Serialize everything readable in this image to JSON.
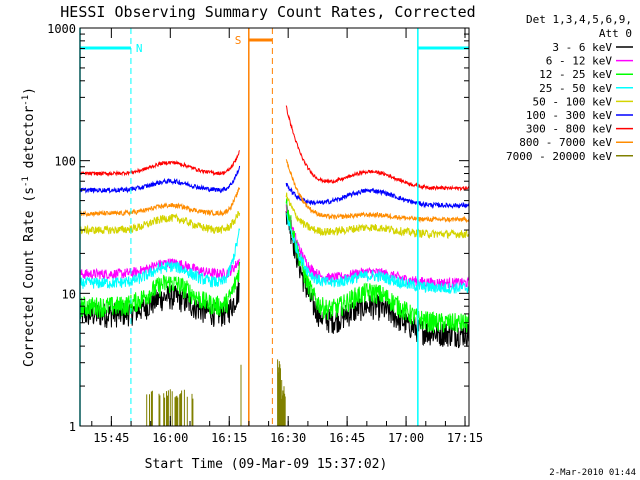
{
  "chart_data": {
    "type": "line",
    "title": "HESSI Observing Summary Count Rates, Corrected",
    "xlabel": "Start Time (09-Mar-09 15:37:02)",
    "ylabel": "Corrected Count Rate (s⁻¹ detector⁻¹)",
    "ylabel_main": "Corrected Count Rate (s",
    "ylabel_sup1": "-1",
    "ylabel_mid": " detector",
    "ylabel_sup2": "-1",
    "ylabel_end": ")",
    "y_scale": "log",
    "ylim": [
      1,
      1000
    ],
    "xlim": [
      15.617,
      17.267
    ],
    "x_ticks": [
      {
        "v": 15.75,
        "label": "15:45"
      },
      {
        "v": 16.0,
        "label": "16:00"
      },
      {
        "v": 16.25,
        "label": "16:15"
      },
      {
        "v": 16.5,
        "label": "16:30"
      },
      {
        "v": 16.75,
        "label": "16:45"
      },
      {
        "v": 17.0,
        "label": "17:00"
      },
      {
        "v": 17.25,
        "label": "17:15"
      }
    ],
    "y_ticks": [
      {
        "v": 1,
        "label": "1"
      },
      {
        "v": 10,
        "label": "10"
      },
      {
        "v": 100,
        "label": "100"
      },
      {
        "v": 1000,
        "label": "1000"
      }
    ],
    "legend": {
      "placement": "top-right",
      "header_line1": "Det 1,3,4,5,6,9,",
      "header_line2": "Att 0"
    },
    "timestamp": "2-Mar-2010 01:44",
    "series": [
      {
        "name": "3 - 6 keV",
        "color": "#000000",
        "base": 7,
        "peak": 9.5,
        "tail": 5,
        "noise": 0.22,
        "rise": 1.6,
        "decay": 40,
        "night": 0
      },
      {
        "name": "6 - 12 keV",
        "color": "#ff00ff",
        "base": 14,
        "peak": 17,
        "tail": 12,
        "noise": 0.09,
        "rise": 1.3,
        "decay": 35,
        "night": 0
      },
      {
        "name": "12 - 25 keV",
        "color": "#00ff00",
        "base": 8,
        "peak": 12,
        "tail": 6,
        "noise": 0.18,
        "rise": 2.0,
        "decay": 45,
        "night": 0
      },
      {
        "name": "25 - 50 keV",
        "color": "#00ffff",
        "base": 12,
        "peak": 16,
        "tail": 11,
        "noise": 0.1,
        "rise": 2.5,
        "decay": 30,
        "night": 0
      },
      {
        "name": "50 - 100 keV",
        "color": "#d4d400",
        "base": 30,
        "peak": 37,
        "tail": 28,
        "noise": 0.07,
        "rise": 1.4,
        "decay": 28,
        "night": 0
      },
      {
        "name": "100 - 300 keV",
        "color": "#0000ff",
        "base": 60,
        "peak": 70,
        "tail": 46,
        "noise": 0.04,
        "rise": 1.5,
        "decay": 22,
        "night": 0
      },
      {
        "name": "300 - 800 keV",
        "color": "#ff0000",
        "base": 80,
        "peak": 97,
        "tail": 62,
        "noise": 0.03,
        "rise": 1.5,
        "decay": 200,
        "night": 0
      },
      {
        "name": "800 - 7000 keV",
        "color": "#ff8c00",
        "base": 40,
        "peak": 46,
        "tail": 36,
        "noise": 0.04,
        "rise": 1.6,
        "decay": 70,
        "night": 0
      },
      {
        "name": "7000 - 20000 keV",
        "color": "#808000",
        "base": 1.6,
        "peak": 1.9,
        "tail": 1.6,
        "noise": 0.1,
        "rise": 1.8,
        "decay": 8,
        "night": 1
      }
    ],
    "annotations": {
      "night_label": "N",
      "saa_label": "S",
      "night_segments": [
        [
          15.617,
          15.833
        ],
        [
          17.05,
          17.267
        ]
      ],
      "saa_segment": [
        16.333,
        16.433
      ],
      "cyan_solid_lines": [
        15.617,
        17.05
      ],
      "cyan_dashed_lines": [
        15.833,
        17.267
      ],
      "orange_solid_lines": [
        16.333
      ],
      "orange_dashed_lines": [
        16.433
      ],
      "cyan_color": "#00ffff",
      "orange_color": "#ff8000"
    }
  }
}
